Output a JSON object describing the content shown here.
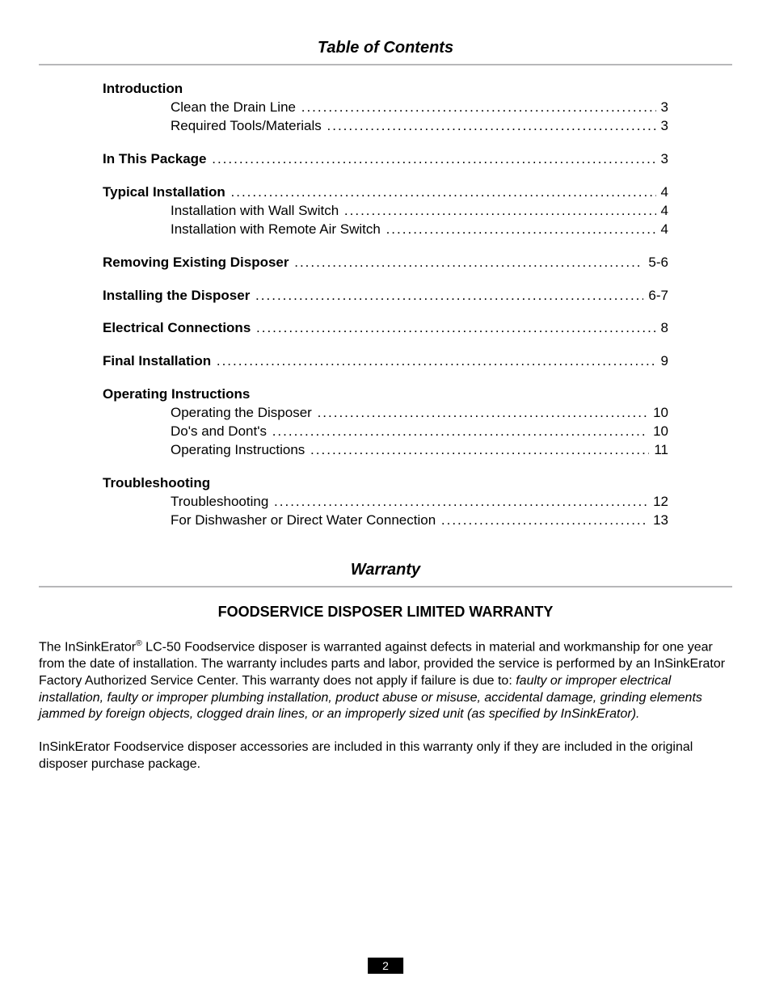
{
  "doc": {
    "toc_title": "Table of Contents",
    "warranty_title": "Warranty",
    "warranty_heading": "FOODSERVICE DISPOSER LIMITED WARRANTY",
    "page_number": "2"
  },
  "toc": {
    "groups": [
      {
        "heading": "Introduction",
        "heading_has_page": false,
        "heading_page": "",
        "items": [
          {
            "label": "Clean the Drain Line",
            "page": "3"
          },
          {
            "label": "Required Tools/Materials",
            "page": "3"
          }
        ]
      },
      {
        "heading": "In This Package",
        "heading_has_page": true,
        "heading_page": "3",
        "items": []
      },
      {
        "heading": "Typical Installation",
        "heading_has_page": true,
        "heading_page": "4",
        "items": [
          {
            "label": "Installation with Wall Switch",
            "page": "4"
          },
          {
            "label": "Installation with Remote Air Switch",
            "page": "4"
          }
        ]
      },
      {
        "heading": "Removing Existing Disposer",
        "heading_has_page": true,
        "heading_page": "5-6",
        "items": []
      },
      {
        "heading": "Installing the Disposer",
        "heading_has_page": true,
        "heading_page": "6-7",
        "items": []
      },
      {
        "heading": "Electrical Connections",
        "heading_has_page": true,
        "heading_page": "8",
        "items": []
      },
      {
        "heading": "Final Installation",
        "heading_has_page": true,
        "heading_page": "9",
        "items": []
      },
      {
        "heading": "Operating Instructions",
        "heading_has_page": false,
        "heading_page": "",
        "items": [
          {
            "label": "Operating the Disposer",
            "page": "10"
          },
          {
            "label": "Do's and Dont's",
            "page": "10"
          },
          {
            "label": "Operating Instructions",
            "page": "11"
          }
        ]
      },
      {
        "heading": "Troubleshooting",
        "heading_has_page": false,
        "heading_page": "",
        "items": [
          {
            "label": "Troubleshooting",
            "page": "12"
          },
          {
            "label": "For Dishwasher or Direct Water Connection",
            "page": "13"
          }
        ]
      }
    ]
  },
  "warranty": {
    "p1_pre": "The InSinkErator",
    "p1_reg": "®",
    "p1_mid": " LC-50 Foodservice disposer is warranted against defects in material and workmanship for one year from the date of installation. The warranty includes parts and labor, provided the service is performed by an InSinkErator Factory Authorized Service Center. This warranty does not apply if failure is due to: ",
    "p1_italic": "faulty or improper electrical installation, faulty or improper plumbing installation, product abuse or misuse, accidental damage, grinding elements jammed by foreign objects, clogged drain lines, or an improperly sized unit (as specified by InSinkErator).",
    "p2": "InSinkErator Foodservice disposer accessories are included in this warranty only if they are included in the original disposer purchase package."
  },
  "style": {
    "text_color": "#000000",
    "rule_color": "#b7b7b9",
    "page_bg": "#ffffff",
    "page_box_bg": "#000000",
    "page_box_fg": "#ffffff",
    "title_fontsize": 20,
    "body_fontsize": 16,
    "toc_fontsize": 17
  }
}
